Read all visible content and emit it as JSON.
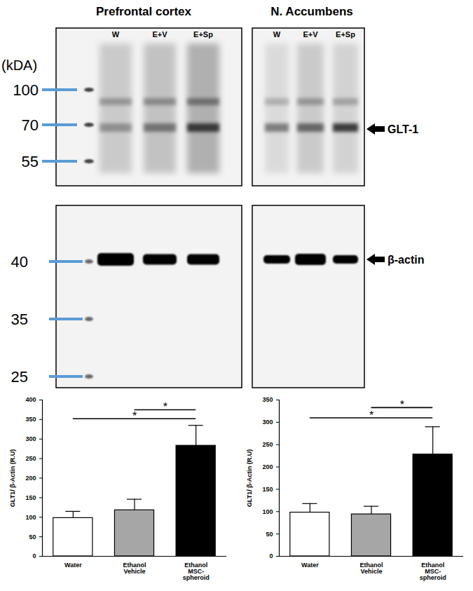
{
  "blots": {
    "unit": "(kDA)",
    "panels": [
      {
        "title": "Prefrontal cortex",
        "lanes": [
          "W",
          "E+V",
          "E+Sp"
        ]
      },
      {
        "title": "N. Accumbens",
        "lanes": [
          "W",
          "E+V",
          "E+Sp"
        ]
      }
    ],
    "markers_top": [
      100,
      70,
      55
    ],
    "markers_bottom": [
      40,
      35,
      25
    ],
    "band_labels": [
      "GLT-1",
      "β-actin"
    ]
  },
  "chart_data": [
    {
      "type": "bar",
      "y_label": "GLT1/ β-Actin (R.U)",
      "categories": [
        "Water",
        "Ethanol\nVehicle",
        "Ethanol\nMSC-\nspheroid"
      ],
      "values": [
        98,
        118,
        283
      ],
      "errors": [
        17,
        28,
        52
      ],
      "colors": [
        "#ffffff",
        "#a6a6a6",
        "#000000"
      ],
      "ylim": [
        0,
        400
      ],
      "yticks": [
        0,
        50,
        100,
        150,
        200,
        250,
        300,
        350,
        400
      ],
      "annotations": [
        {
          "from": 1,
          "to": 2,
          "y": 375,
          "text": "*"
        },
        {
          "from": 0,
          "to": 2,
          "y": 352,
          "text": "*"
        }
      ]
    },
    {
      "type": "bar",
      "y_label": "GLT1/ β-Actin (R.U)",
      "categories": [
        "Water",
        "Ethanol\nVehicle",
        "Ethanol\nMSC-\nspheroid"
      ],
      "values": [
        98,
        94,
        228
      ],
      "errors": [
        20,
        18,
        62
      ],
      "colors": [
        "#ffffff",
        "#a6a6a6",
        "#000000"
      ],
      "ylim": [
        0,
        350
      ],
      "yticks": [
        0,
        50,
        100,
        150,
        200,
        250,
        300,
        350
      ],
      "annotations": [
        {
          "from": 1,
          "to": 2,
          "y": 333,
          "text": "*"
        },
        {
          "from": 0,
          "to": 2,
          "y": 310,
          "text": "*"
        }
      ]
    }
  ]
}
